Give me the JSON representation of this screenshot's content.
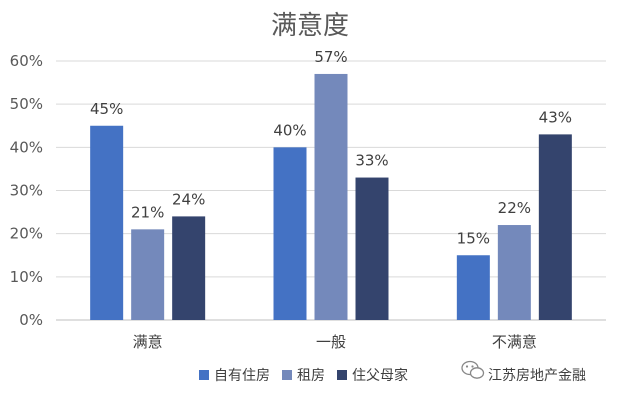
{
  "chart_data": {
    "type": "bar",
    "title": "满意度",
    "categories": [
      "满意",
      "一般",
      "不满意"
    ],
    "series": [
      {
        "name": "自有住房",
        "values": [
          45,
          40,
          15
        ],
        "color": "#4472C4"
      },
      {
        "name": "租房",
        "values": [
          21,
          57,
          22
        ],
        "color": "#7489BB"
      },
      {
        "name": "住父母家",
        "values": [
          24,
          33,
          43
        ],
        "color": "#34446D"
      }
    ],
    "ylim": [
      0,
      60
    ],
    "yticks": [
      0,
      10,
      20,
      30,
      40,
      50,
      60
    ],
    "value_format": "percent",
    "grid": true,
    "legend_position": "bottom"
  },
  "watermark": {
    "text": "江苏房地产金融",
    "icon": "wechat-icon"
  }
}
